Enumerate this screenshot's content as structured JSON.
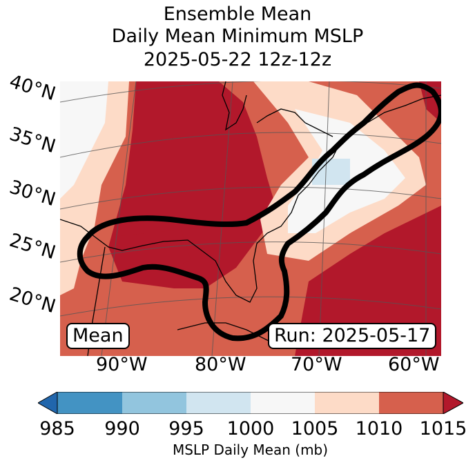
{
  "title": {
    "line1": "Ensemble Mean",
    "line2": "Daily Mean Minimum MSLP",
    "line3": "2025-05-22 12z-12z"
  },
  "map": {
    "lat_labels": [
      "40°N",
      "35°N",
      "30°N",
      "25°N",
      "20°N"
    ],
    "lon_labels": [
      "90°W",
      "80°W",
      "70°W",
      "60°W"
    ],
    "mean_box": "Mean",
    "run_box": "Run: 2025-05-17"
  },
  "colorbar": {
    "ticks": [
      "985",
      "990",
      "995",
      "1000",
      "1005",
      "1010",
      "1015"
    ],
    "label": "MSLP Daily Mean (mb)",
    "colors": [
      "#2166ac",
      "#4393c3",
      "#92c5de",
      "#d1e5f0",
      "#f7f7f7",
      "#fddbc7",
      "#d6604d",
      "#b2182b"
    ]
  },
  "field_colors": {
    "band_1005_1010": "#fddbc7",
    "band_1010_1015": "#d6604d",
    "band_above_1015": "#b2182b",
    "band_1000_1005": "#f7f7f7",
    "band_995_1000": "#d1e5f0",
    "outline": "#000000"
  }
}
